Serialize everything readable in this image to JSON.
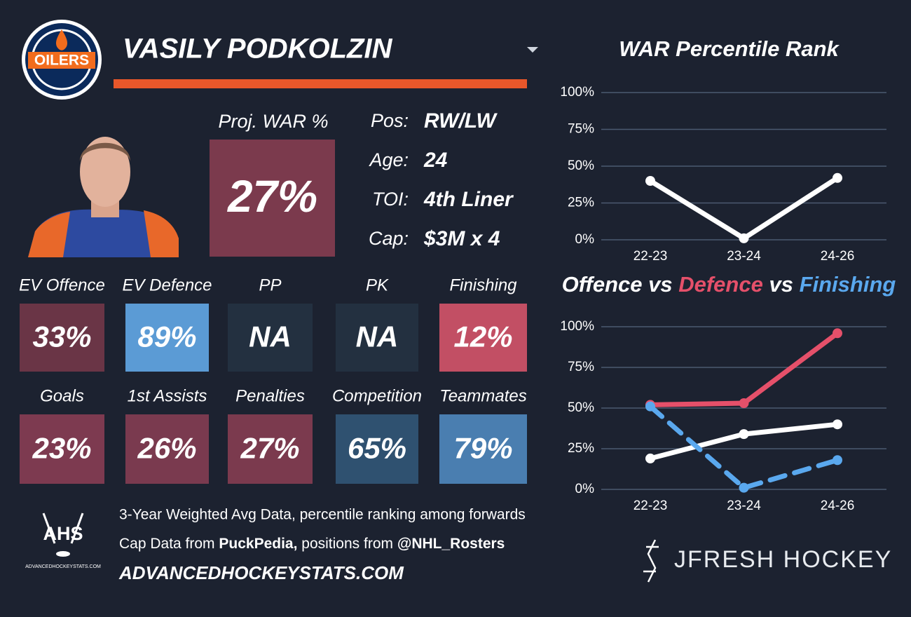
{
  "header": {
    "team_logo": "OILERS",
    "player": "VASILY PODKOLZIN"
  },
  "projection": {
    "label": "Proj. WAR %",
    "value": "27%",
    "color": "#7b3a4d"
  },
  "info": [
    {
      "label": "Pos:",
      "value": "RW/LW"
    },
    {
      "label": "Age:",
      "value": "24"
    },
    {
      "label": "TOI:",
      "value": "4th Liner"
    },
    {
      "label": "Cap:",
      "value": "$3M x 4"
    }
  ],
  "tiles": [
    {
      "label": "EV Offence",
      "value": "33%",
      "color": "#6a3546"
    },
    {
      "label": "EV Defence",
      "value": "89%",
      "color": "#5b9bd5"
    },
    {
      "label": "PP",
      "value": "NA",
      "color": "#233040"
    },
    {
      "label": "PK",
      "value": "NA",
      "color": "#233040"
    },
    {
      "label": "Finishing",
      "value": "12%",
      "color": "#c24f64"
    },
    {
      "label": "Goals",
      "value": "23%",
      "color": "#7d3a50"
    },
    {
      "label": "1st Assists",
      "value": "26%",
      "color": "#7a3a4f"
    },
    {
      "label": "Penalties",
      "value": "27%",
      "color": "#7b3a4e"
    },
    {
      "label": "Competition",
      "value": "65%",
      "color": "#2f5170"
    },
    {
      "label": "Teammates",
      "value": "79%",
      "color": "#4a7eb0"
    }
  ],
  "footer": {
    "logo": "AHS",
    "logo_caption": "ADVANCEDHOCKEYSTATS.COM",
    "note": "3-Year Weighted Avg Data, percentile ranking among forwards",
    "sources": [
      "Cap Data from ",
      "PuckPedia,",
      " positions from ",
      "@NHL_Rosters"
    ],
    "site": "ADVANCEDHOCKEYSTATS.COM",
    "brand": "JFRESH HOCKEY"
  },
  "chart_data": [
    {
      "type": "line",
      "title": "WAR Percentile Rank",
      "categories": [
        "22-23",
        "23-24",
        "24-26"
      ],
      "series": [
        {
          "name": null,
          "color": "#ffffff",
          "values": [
            40,
            1,
            42
          ]
        }
      ],
      "ylim": [
        0,
        100
      ],
      "yticks": [
        {
          "value": 0,
          "label": "0%"
        },
        {
          "value": 25,
          "label": "25%"
        },
        {
          "value": 50,
          "label": "50%"
        },
        {
          "value": 75,
          "label": "75%"
        },
        {
          "value": 100,
          "label": "100%"
        }
      ],
      "grid": true
    },
    {
      "type": "line",
      "title_joiner": " vs ",
      "categories": [
        "22-23",
        "23-24",
        "24-26"
      ],
      "series": [
        {
          "name": "Offence",
          "color": "#ffffff",
          "values": [
            19,
            34,
            40
          ],
          "dashed": false
        },
        {
          "name": "Defence",
          "color": "#e5506a",
          "values": [
            52,
            53,
            96
          ],
          "dashed": false
        },
        {
          "name": "Finishing",
          "color": "#5aa8ee",
          "values": [
            51,
            1,
            18
          ],
          "dashed": true
        }
      ],
      "ylim": [
        0,
        100
      ],
      "yticks": [
        {
          "value": 0,
          "label": "0%"
        },
        {
          "value": 25,
          "label": "25%"
        },
        {
          "value": 50,
          "label": "50%"
        },
        {
          "value": 75,
          "label": "75%"
        },
        {
          "value": 100,
          "label": "100%"
        }
      ],
      "grid": true
    }
  ]
}
